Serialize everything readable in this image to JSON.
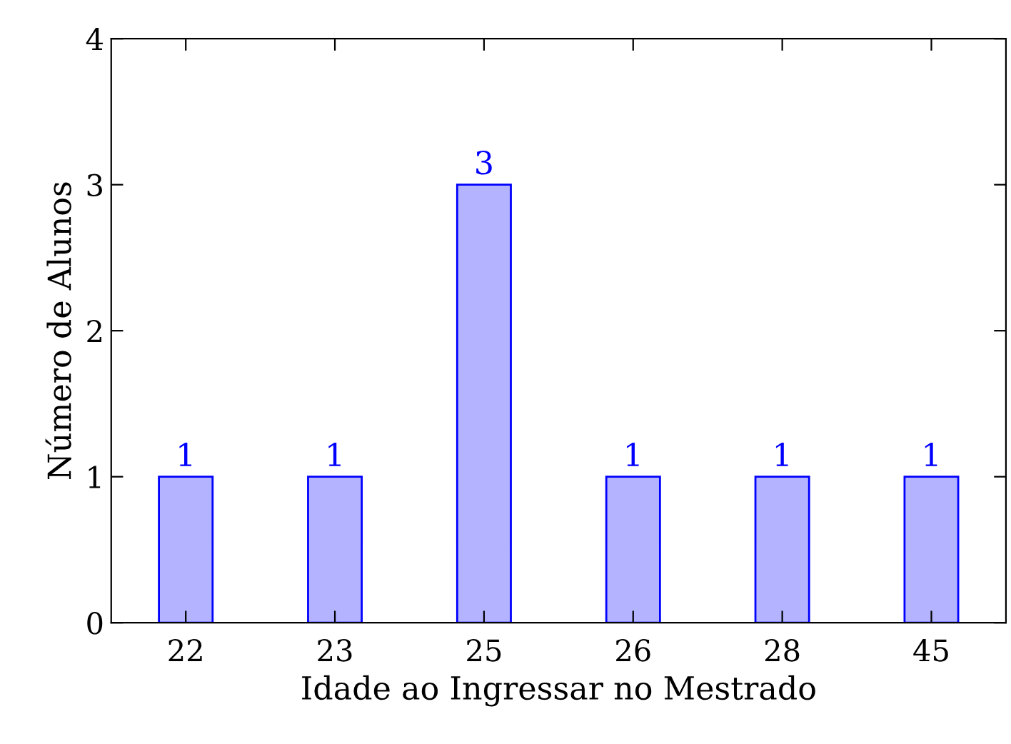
{
  "chart_data": {
    "type": "bar",
    "xlabel": "Idade ao Ingressar no Mestrado",
    "ylabel": "Número de Alunos",
    "categories": [
      "22",
      "23",
      "25",
      "26",
      "28",
      "45"
    ],
    "values": [
      1,
      1,
      3,
      1,
      1,
      1
    ],
    "color": "#b3b3ff",
    "ylim": [
      0,
      4
    ],
    "yticks": [
      0,
      1,
      2,
      3,
      4
    ],
    "data_labels": true,
    "grid": false,
    "legend": false
  }
}
